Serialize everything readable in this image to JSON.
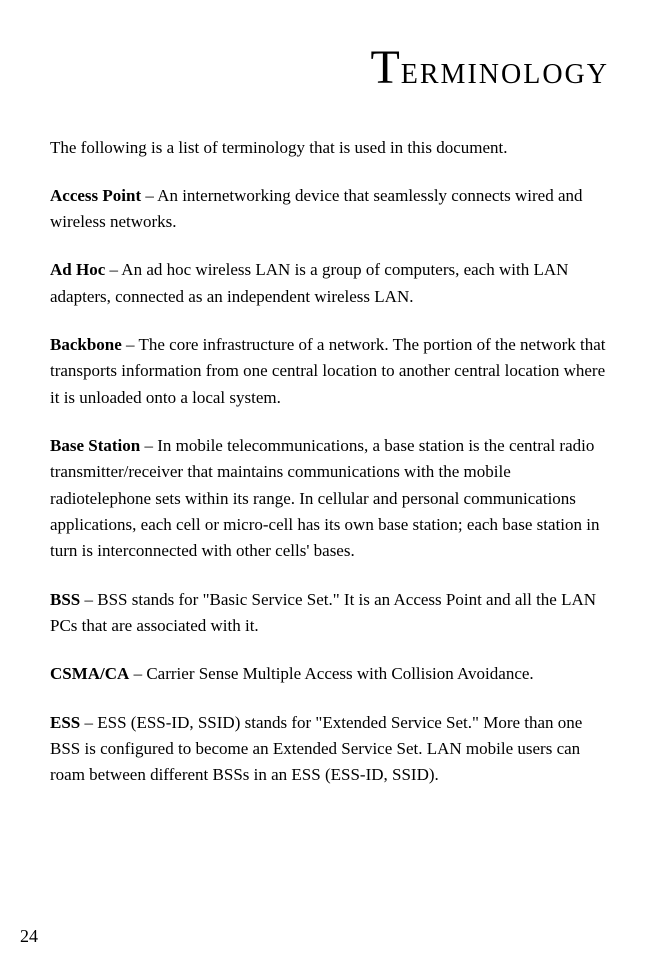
{
  "title": {
    "first_letter": "T",
    "rest": "ERMINOLOGY"
  },
  "intro": "The following is a list of terminology that is used in this document.",
  "entries": [
    {
      "term": "Access Point",
      "definition": " – An internetworking device that seamlessly connects wired and wireless networks."
    },
    {
      "term": "Ad Hoc",
      "definition": " – An ad hoc wireless LAN is a group of computers, each with LAN adapters, connected as an independent wireless LAN."
    },
    {
      "term": "Backbone",
      "definition": " – The core infrastructure of a network. The portion of the network that transports information from one central location to another central location where it is unloaded onto a local system."
    },
    {
      "term": "Base Station",
      "definition": " – In mobile telecommunications, a base station is the central radio transmitter/receiver that maintains communications with the mobile radiotelephone sets within its range. In cellular and personal communications applications, each cell or micro-cell has its own base station; each base station in turn is interconnected with other cells' bases."
    },
    {
      "term": "BSS",
      "definition": " – BSS stands for \"Basic Service Set.\" It is an Access Point and all the LAN PCs that are associated with it."
    },
    {
      "term": "CSMA/CA",
      "definition": " – Carrier Sense Multiple Access with Collision Avoidance."
    },
    {
      "term": "ESS",
      "definition": " – ESS (ESS-ID, SSID) stands for \"Extended Service Set.\" More than one BSS is configured to become an Extended Service Set. LAN mobile users can roam between different BSSs in an ESS (ESS-ID, SSID)."
    }
  ],
  "page_number": "24",
  "styles": {
    "background_color": "#ffffff",
    "text_color": "#000000",
    "title_big_fontsize": 48,
    "title_rest_fontsize": 28,
    "body_fontsize": 17,
    "page_number_fontsize": 18,
    "line_height": 1.55,
    "font_family": "Georgia, 'Times New Roman', serif"
  }
}
